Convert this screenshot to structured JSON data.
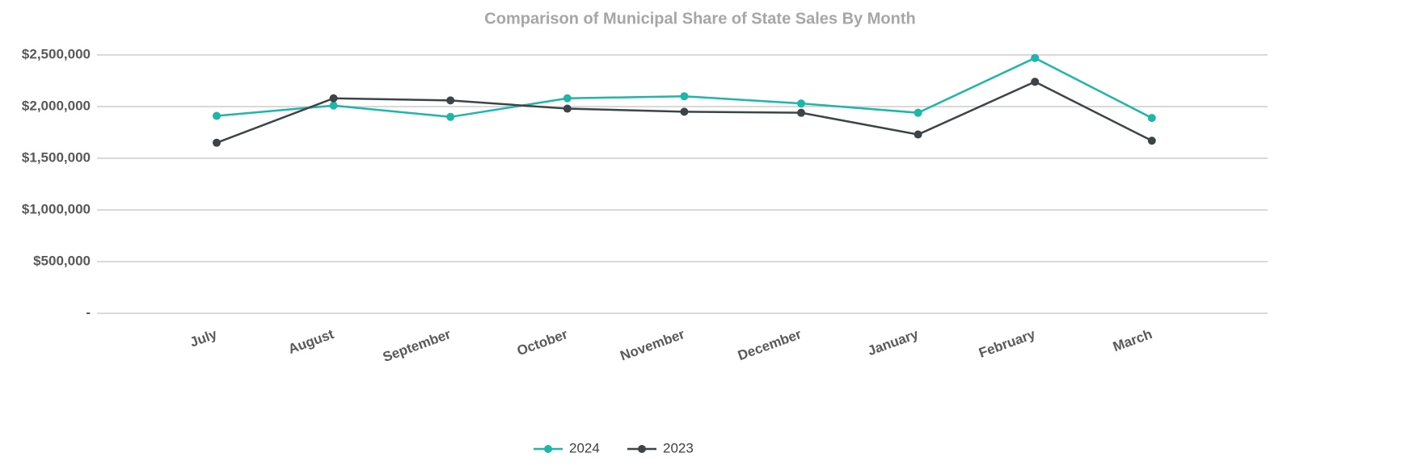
{
  "chart_data": {
    "type": "line",
    "title": "Comparison of Municipal Share of State Sales By Month",
    "categories": [
      "July",
      "August",
      "September",
      "October",
      "November",
      "December",
      "January",
      "February",
      "March"
    ],
    "series": [
      {
        "name": "2024",
        "color": "#1fb5a8",
        "values": [
          1910000,
          2010000,
          1900000,
          2080000,
          2100000,
          2030000,
          1940000,
          2470000,
          1890000
        ]
      },
      {
        "name": "2023",
        "color": "#3d4447",
        "values": [
          1650000,
          2080000,
          2060000,
          1980000,
          1950000,
          1940000,
          1730000,
          2240000,
          1670000
        ]
      }
    ],
    "ylim": [
      0,
      2500000
    ],
    "yticks": [
      {
        "value": 0,
        "label": "-"
      },
      {
        "value": 500000,
        "label": "$500,000"
      },
      {
        "value": 1000000,
        "label": "$1,000,000"
      },
      {
        "value": 1500000,
        "label": "$1,500,000"
      },
      {
        "value": 2000000,
        "label": "$2,000,000"
      },
      {
        "value": 2500000,
        "label": "$2,500,000"
      }
    ],
    "grid": true,
    "legend": "bottom"
  }
}
